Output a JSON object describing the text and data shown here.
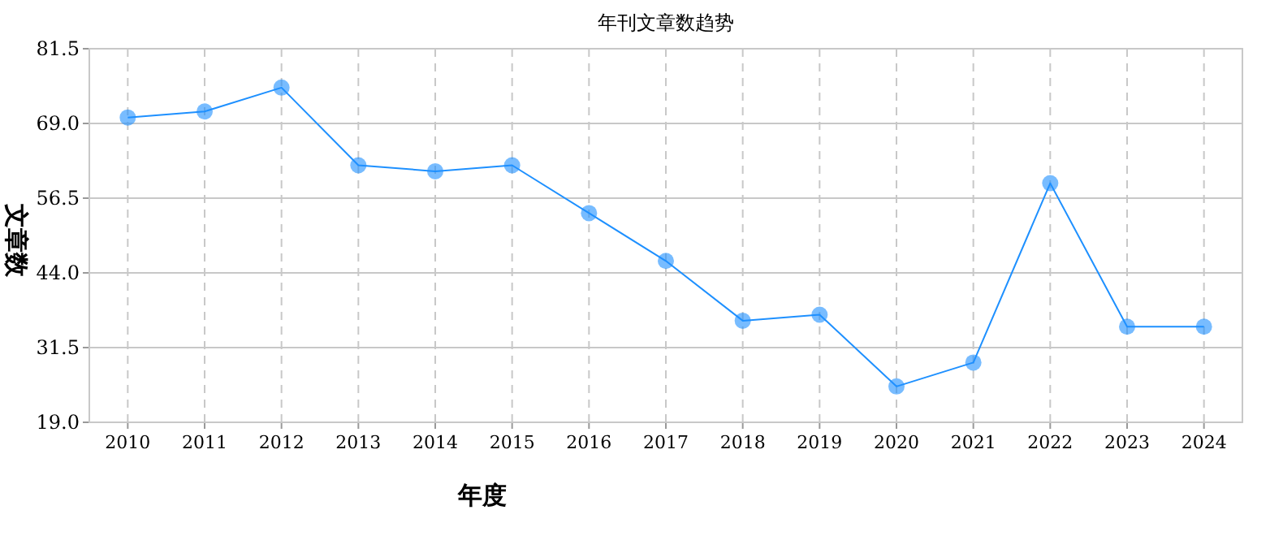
{
  "chart_data": {
    "type": "line",
    "title": "年刊文章数趋势",
    "xlabel": "年度",
    "ylabel": "文章数",
    "categories": [
      "2010",
      "2011",
      "2012",
      "2013",
      "2014",
      "2015",
      "2016",
      "2017",
      "2018",
      "2019",
      "2020",
      "2021",
      "2022",
      "2023",
      "2024"
    ],
    "series": [
      {
        "color": "#1e90ff",
        "values": [
          70,
          71,
          75,
          62,
          61,
          62,
          54,
          46,
          36,
          37,
          25,
          29,
          59,
          35,
          35
        ]
      }
    ],
    "ylim": [
      19.0,
      81.5
    ],
    "yticks": [
      {
        "value": 19,
        "label": "19.0"
      },
      {
        "value": 31.5,
        "label": "31.5"
      },
      {
        "value": 44,
        "label": "44.0"
      },
      {
        "value": 56.5,
        "label": "56.5"
      },
      {
        "value": 69,
        "label": "69.0"
      },
      {
        "value": 81.5,
        "label": "81.5"
      }
    ],
    "grid": true,
    "marker": "circle",
    "line_style": "solid"
  }
}
